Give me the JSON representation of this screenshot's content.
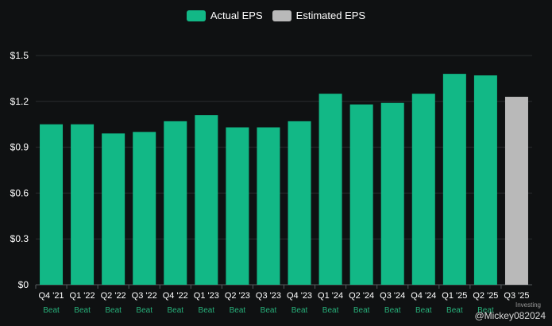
{
  "legend": {
    "actual_label": "Actual EPS",
    "estimated_label": "Estimated EPS"
  },
  "watermark": {
    "handle": "@Mickey082024",
    "brand": "Investing"
  },
  "colors": {
    "actual": "#12b886",
    "estimated": "#b9b9b9",
    "beat_text": "#27b07a",
    "grid": "#2a2d2f",
    "background": "#0f1112"
  },
  "chart_data": {
    "type": "bar",
    "categories": [
      "Q4 '21",
      "Q1 '22",
      "Q2 '22",
      "Q3 '22",
      "Q4 '22",
      "Q1 '23",
      "Q2 '23",
      "Q3 '23",
      "Q4 '23",
      "Q1 '24",
      "Q2 '24",
      "Q3 '24",
      "Q4 '24",
      "Q1 '25",
      "Q2 '25",
      "Q3 '25"
    ],
    "series": [
      {
        "name": "Actual EPS",
        "values": [
          1.05,
          1.05,
          0.99,
          1.0,
          1.07,
          1.11,
          1.03,
          1.03,
          1.07,
          1.25,
          1.18,
          1.19,
          1.25,
          1.38,
          1.37,
          null
        ]
      },
      {
        "name": "Estimated EPS",
        "values": [
          null,
          null,
          null,
          null,
          null,
          null,
          null,
          null,
          null,
          null,
          null,
          null,
          null,
          null,
          null,
          1.23
        ]
      }
    ],
    "annotations": [
      "Beat",
      "Beat",
      "Beat",
      "Beat",
      "Beat",
      "Beat",
      "Beat",
      "Beat",
      "Beat",
      "Beat",
      "Beat",
      "Beat",
      "Beat",
      "Beat",
      "Beat",
      ""
    ],
    "y_ticks": [
      "$0",
      "$0.3",
      "$0.6",
      "$0.9",
      "$1.2",
      "$1.5"
    ],
    "y_tick_values": [
      0,
      0.3,
      0.6,
      0.9,
      1.2,
      1.5
    ],
    "ylim": [
      0,
      1.5
    ],
    "grid": true,
    "legend_position": "top-center"
  }
}
